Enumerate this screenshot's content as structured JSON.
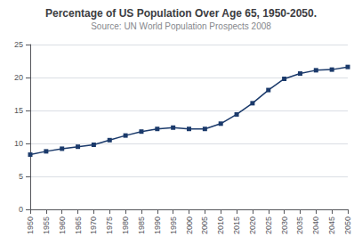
{
  "chart_data": {
    "type": "line",
    "title": "Percentage of US Population Over Age 65, 1950-2050.",
    "subtitle": "Source: UN World Population Prospects 2008",
    "x": [
      1950,
      1955,
      1960,
      1965,
      1970,
      1975,
      1980,
      1985,
      1990,
      1995,
      2000,
      2005,
      2010,
      2015,
      2020,
      2025,
      2030,
      2035,
      2040,
      2045,
      2050
    ],
    "values": [
      8.3,
      8.8,
      9.2,
      9.5,
      9.8,
      10.5,
      11.2,
      11.8,
      12.2,
      12.4,
      12.2,
      12.2,
      13.0,
      14.4,
      16.1,
      18.1,
      19.8,
      20.6,
      21.1,
      21.2,
      21.6
    ],
    "color": "#1b3a6b",
    "marker": "square",
    "xlim": [
      1950,
      2050
    ],
    "xticks": [
      1950,
      1955,
      1960,
      1965,
      1970,
      1975,
      1980,
      1985,
      1990,
      1995,
      2000,
      2005,
      2010,
      2015,
      2020,
      2025,
      2030,
      2035,
      2040,
      2045,
      2050
    ],
    "ylim": [
      0,
      25
    ],
    "yticks": [
      0,
      5,
      10,
      15,
      20,
      25
    ],
    "grid": true
  }
}
